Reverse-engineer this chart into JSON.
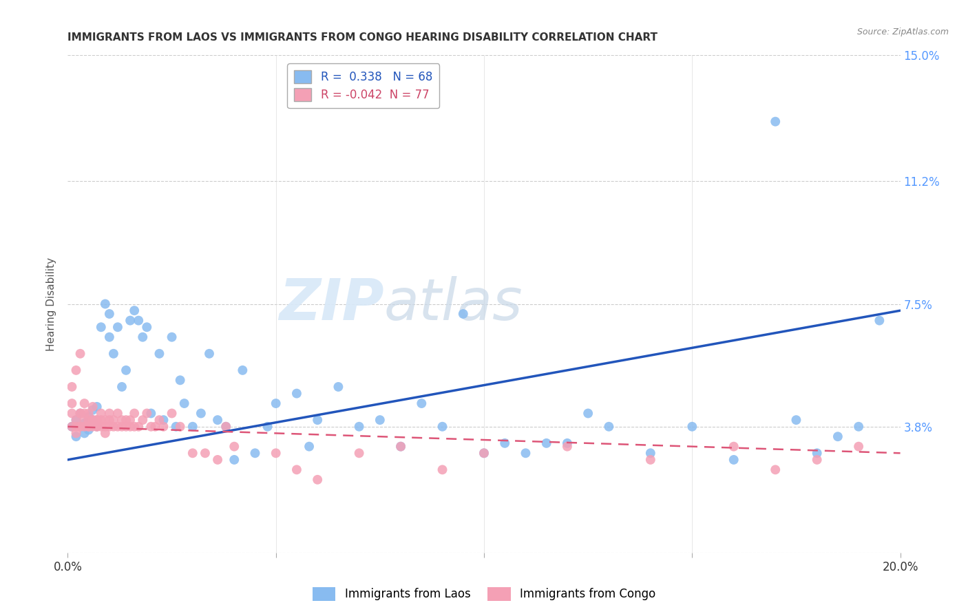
{
  "title": "IMMIGRANTS FROM LAOS VS IMMIGRANTS FROM CONGO HEARING DISABILITY CORRELATION CHART",
  "source": "Source: ZipAtlas.com",
  "ylabel": "Hearing Disability",
  "xmin": 0.0,
  "xmax": 0.2,
  "ymin": 0.0,
  "ymax": 0.15,
  "yticks": [
    0.0,
    0.038,
    0.075,
    0.112,
    0.15
  ],
  "ytick_labels": [
    "",
    "3.8%",
    "7.5%",
    "11.2%",
    "15.0%"
  ],
  "xticks": [
    0.0,
    0.05,
    0.1,
    0.15,
    0.2
  ],
  "xtick_labels": [
    "0.0%",
    "",
    "",
    "",
    "20.0%"
  ],
  "background_color": "#ffffff",
  "watermark_zip": "ZIP",
  "watermark_atlas": "atlas",
  "laos_color": "#88BBF0",
  "congo_color": "#F4A0B5",
  "laos_line_color": "#2255BB",
  "congo_line_color": "#DD5577",
  "laos_R": 0.338,
  "laos_N": 68,
  "congo_R": -0.042,
  "congo_N": 77,
  "laos_x": [
    0.001,
    0.002,
    0.002,
    0.003,
    0.004,
    0.004,
    0.005,
    0.005,
    0.006,
    0.006,
    0.007,
    0.007,
    0.008,
    0.009,
    0.01,
    0.01,
    0.011,
    0.012,
    0.013,
    0.014,
    0.015,
    0.016,
    0.017,
    0.018,
    0.019,
    0.02,
    0.022,
    0.023,
    0.025,
    0.026,
    0.027,
    0.028,
    0.03,
    0.032,
    0.034,
    0.036,
    0.038,
    0.04,
    0.042,
    0.045,
    0.048,
    0.05,
    0.055,
    0.058,
    0.06,
    0.065,
    0.07,
    0.075,
    0.08,
    0.085,
    0.09,
    0.095,
    0.1,
    0.105,
    0.11,
    0.115,
    0.12,
    0.125,
    0.13,
    0.14,
    0.15,
    0.16,
    0.17,
    0.175,
    0.18,
    0.185,
    0.19,
    0.195
  ],
  "laos_y": [
    0.038,
    0.035,
    0.04,
    0.042,
    0.036,
    0.039,
    0.041,
    0.037,
    0.043,
    0.04,
    0.038,
    0.044,
    0.068,
    0.075,
    0.072,
    0.065,
    0.06,
    0.068,
    0.05,
    0.055,
    0.07,
    0.073,
    0.07,
    0.065,
    0.068,
    0.042,
    0.06,
    0.04,
    0.065,
    0.038,
    0.052,
    0.045,
    0.038,
    0.042,
    0.06,
    0.04,
    0.038,
    0.028,
    0.055,
    0.03,
    0.038,
    0.045,
    0.048,
    0.032,
    0.04,
    0.05,
    0.038,
    0.04,
    0.032,
    0.045,
    0.038,
    0.072,
    0.03,
    0.033,
    0.03,
    0.033,
    0.033,
    0.042,
    0.038,
    0.03,
    0.038,
    0.028,
    0.13,
    0.04,
    0.03,
    0.035,
    0.038,
    0.07
  ],
  "congo_x": [
    0.001,
    0.001,
    0.001,
    0.001,
    0.002,
    0.002,
    0.002,
    0.002,
    0.003,
    0.003,
    0.003,
    0.003,
    0.003,
    0.004,
    0.004,
    0.004,
    0.004,
    0.005,
    0.005,
    0.005,
    0.005,
    0.006,
    0.006,
    0.006,
    0.006,
    0.007,
    0.007,
    0.007,
    0.007,
    0.008,
    0.008,
    0.008,
    0.009,
    0.009,
    0.009,
    0.01,
    0.01,
    0.01,
    0.011,
    0.011,
    0.012,
    0.012,
    0.013,
    0.013,
    0.014,
    0.014,
    0.015,
    0.015,
    0.016,
    0.016,
    0.017,
    0.018,
    0.019,
    0.02,
    0.021,
    0.022,
    0.023,
    0.025,
    0.027,
    0.03,
    0.033,
    0.036,
    0.038,
    0.04,
    0.05,
    0.055,
    0.06,
    0.07,
    0.08,
    0.09,
    0.1,
    0.12,
    0.14,
    0.16,
    0.17,
    0.18,
    0.19
  ],
  "congo_y": [
    0.042,
    0.038,
    0.045,
    0.05,
    0.04,
    0.038,
    0.036,
    0.055,
    0.042,
    0.038,
    0.042,
    0.038,
    0.06,
    0.04,
    0.038,
    0.042,
    0.045,
    0.038,
    0.04,
    0.038,
    0.042,
    0.04,
    0.038,
    0.04,
    0.044,
    0.04,
    0.038,
    0.04,
    0.038,
    0.04,
    0.042,
    0.038,
    0.04,
    0.036,
    0.038,
    0.038,
    0.04,
    0.042,
    0.038,
    0.04,
    0.038,
    0.042,
    0.038,
    0.04,
    0.038,
    0.04,
    0.038,
    0.04,
    0.038,
    0.042,
    0.038,
    0.04,
    0.042,
    0.038,
    0.038,
    0.04,
    0.038,
    0.042,
    0.038,
    0.03,
    0.03,
    0.028,
    0.038,
    0.032,
    0.03,
    0.025,
    0.022,
    0.03,
    0.032,
    0.025,
    0.03,
    0.032,
    0.028,
    0.032,
    0.025,
    0.028,
    0.032
  ]
}
